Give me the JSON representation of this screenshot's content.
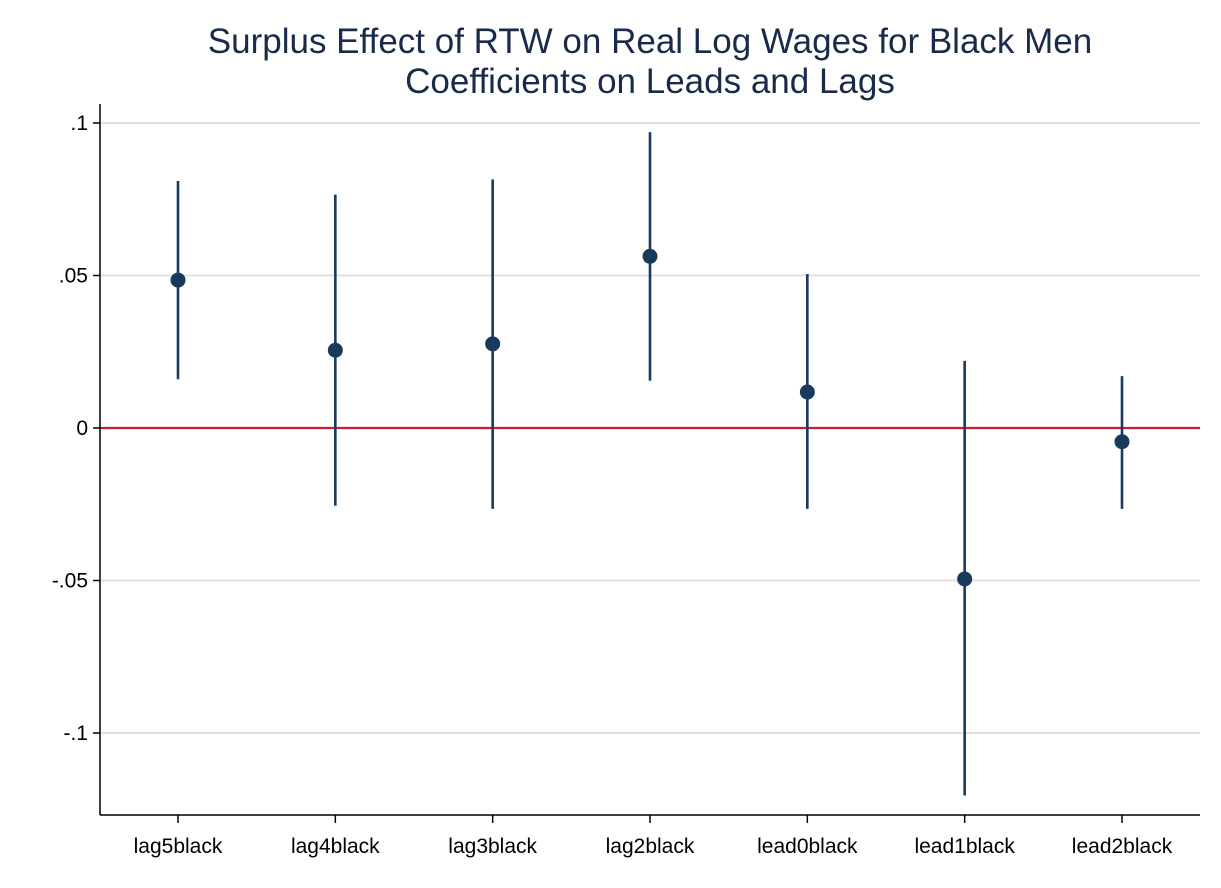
{
  "chart_data": {
    "type": "scatter",
    "title": "Surplus Effect of RTW on Real Log Wages for Black Men",
    "subtitle": "Coefficients on Leads and Lags",
    "xlabel": "",
    "ylabel": "",
    "categories": [
      "lag5black",
      "lag4black",
      "lag3black",
      "lag2black",
      "lead0black",
      "lead1black",
      "lead2black"
    ],
    "series": [
      {
        "values": [
          0.0485,
          0.0255,
          0.0276,
          0.0563,
          0.0118,
          -0.0495,
          -0.0045
        ],
        "ci_low": [
          0.016,
          -0.0255,
          -0.0265,
          0.0155,
          -0.0265,
          -0.1205,
          -0.0265
        ],
        "ci_high": [
          0.081,
          0.0765,
          0.0815,
          0.097,
          0.0505,
          0.022,
          0.017
        ],
        "color": "#1a3a5c"
      }
    ],
    "reference_line": {
      "y": 0,
      "color": "#c41e3a"
    },
    "yticks": [
      0.1,
      0.05,
      0,
      -0.05,
      -0.1
    ],
    "ytick_labels": [
      ".1",
      ".05",
      "0",
      "-.05",
      "-.1"
    ],
    "ylim": [
      -0.127,
      0.106
    ],
    "grid": true,
    "grid_color": "#e0e0e0"
  }
}
